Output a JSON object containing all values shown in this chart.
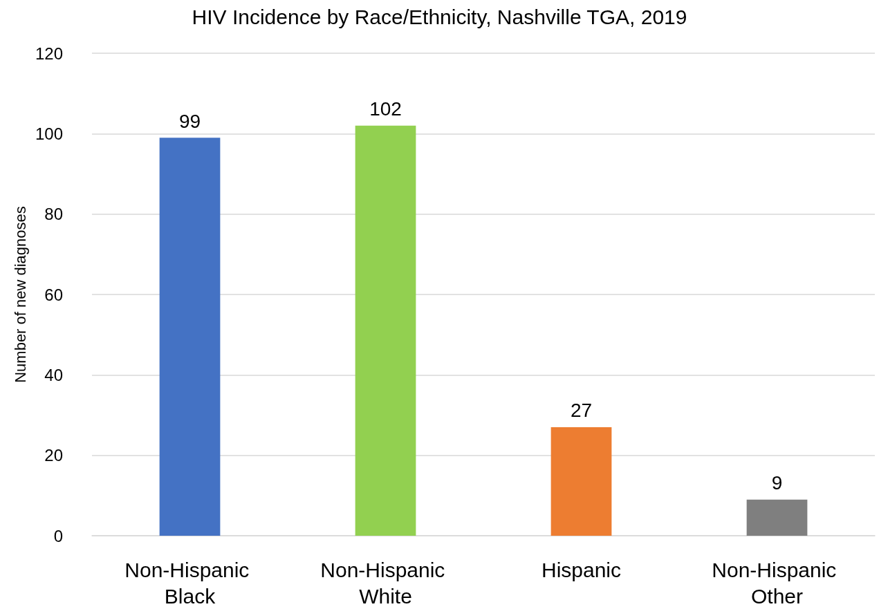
{
  "chart_data": {
    "type": "bar",
    "title": "HIV Incidence by Race/Ethnicity, Nashville TGA, 2019",
    "ylabel": "Number of new diagnoses",
    "categories": [
      "Non-Hispanic Black",
      "Non-Hispanic White",
      "Hispanic",
      "Non-Hispanic Other"
    ],
    "values": [
      99,
      102,
      27,
      9
    ],
    "colors": [
      "#4472c4",
      "#92d050",
      "#ed7d31",
      "#7f7f7f"
    ],
    "ylim": [
      0,
      120
    ],
    "yticks": [
      0,
      20,
      40,
      60,
      80,
      100,
      120
    ],
    "grid": "y",
    "data_labels": true
  }
}
